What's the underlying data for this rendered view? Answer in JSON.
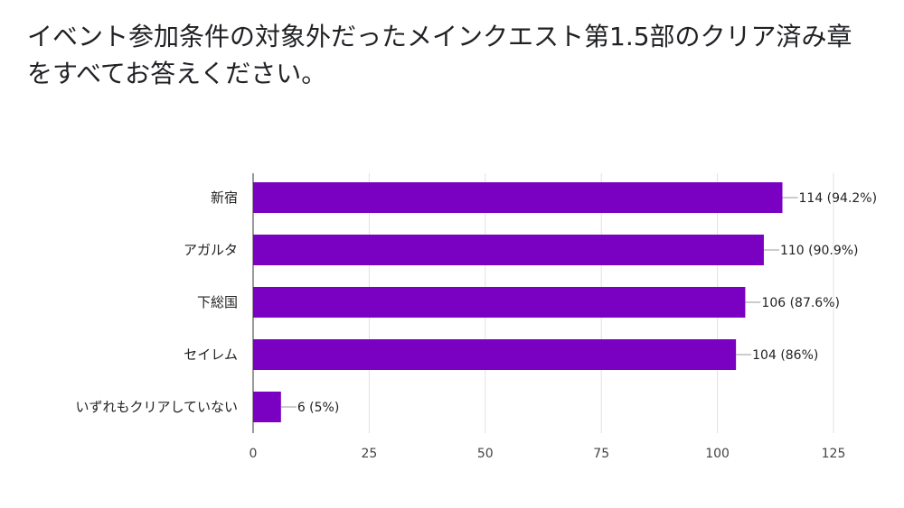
{
  "title": "イベント参加条件の対象外だったメインクエスト第1.5部のクリア済み章をすべてお答えください。",
  "chart_data": {
    "type": "bar",
    "orientation": "horizontal",
    "categories": [
      "新宿",
      "アガルタ",
      "下総国",
      "セイレム",
      "いずれもクリアしていない"
    ],
    "values": [
      114,
      110,
      106,
      104,
      6
    ],
    "data_labels": [
      "114 (94.2%)",
      "110 (90.9%)",
      "106 (87.6%)",
      "104 (86%)",
      "6 (5%)"
    ],
    "xlim": [
      0,
      125
    ],
    "xticks": [
      0,
      25,
      50,
      75,
      100,
      125
    ],
    "grid": true,
    "bar_color": "#7a00c2"
  }
}
